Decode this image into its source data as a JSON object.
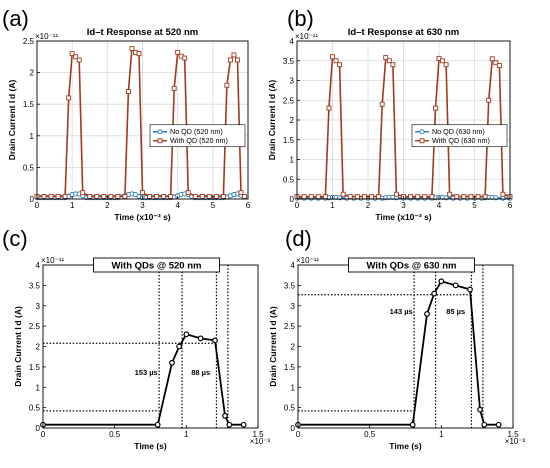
{
  "chart_data": [
    {
      "id": "a",
      "panel_label": "(a)",
      "type": "line",
      "title": "Id–t Response at 520 nm",
      "xlabel": "Time (x10⁻³ s)",
      "ylabel": "Drain Current I d (A)",
      "y_exponent": "×10⁻¹¹",
      "xlim": [
        0,
        6
      ],
      "ylim": [
        0,
        2.5
      ],
      "xticks": [
        0,
        1,
        2,
        3,
        4,
        5,
        6
      ],
      "yticks": [
        0,
        0.5,
        1,
        1.5,
        2,
        2.5
      ],
      "grid": true,
      "legend_position": "center-right",
      "series": [
        {
          "name": "No QD (520 nm)",
          "color": "#1f77b4",
          "marker": "circle",
          "x": [
            0,
            0.1,
            0.2,
            0.3,
            0.4,
            0.5,
            0.6,
            0.7,
            0.8,
            0.9,
            1.0,
            1.1,
            1.2,
            1.3,
            1.4,
            1.5,
            1.6,
            1.7,
            1.8,
            1.9,
            2.0,
            2.1,
            2.2,
            2.3,
            2.4,
            2.5,
            2.6,
            2.7,
            2.8,
            2.9,
            3.0,
            3.1,
            3.2,
            3.3,
            3.4,
            3.5,
            3.6,
            3.7,
            3.8,
            3.9,
            4.0,
            4.1,
            4.2,
            4.3,
            4.4,
            4.5,
            4.6,
            4.7,
            4.8,
            4.9,
            5.0,
            5.1,
            5.2,
            5.3,
            5.4,
            5.5,
            5.6,
            5.7,
            5.8,
            5.9
          ],
          "y": [
            0.02,
            0.02,
            0.02,
            0.02,
            0.02,
            0.02,
            0.02,
            0.02,
            0.02,
            0.04,
            0.07,
            0.08,
            0.08,
            0.05,
            0.02,
            0.02,
            0.02,
            0.02,
            0.02,
            0.02,
            0.02,
            0.02,
            0.02,
            0.02,
            0.03,
            0.05,
            0.07,
            0.08,
            0.07,
            0.04,
            0.02,
            0.02,
            0.02,
            0.02,
            0.02,
            0.02,
            0.02,
            0.02,
            0.02,
            0.03,
            0.05,
            0.07,
            0.08,
            0.07,
            0.04,
            0.02,
            0.02,
            0.02,
            0.02,
            0.02,
            0.02,
            0.02,
            0.02,
            0.02,
            0.03,
            0.05,
            0.07,
            0.08,
            0.06,
            0.03
          ]
        },
        {
          "name": "With QD (520 nm)",
          "color": "#a0391d",
          "marker": "square",
          "x": [
            0,
            0.2,
            0.4,
            0.6,
            0.8,
            0.9,
            1.0,
            1.1,
            1.2,
            1.3,
            1.5,
            1.7,
            1.9,
            2.1,
            2.3,
            2.5,
            2.6,
            2.7,
            2.8,
            2.9,
            3.0,
            3.2,
            3.4,
            3.6,
            3.8,
            3.9,
            4.0,
            4.1,
            4.2,
            4.3,
            4.5,
            4.7,
            4.9,
            5.1,
            5.3,
            5.4,
            5.5,
            5.6,
            5.7,
            5.8,
            5.9
          ],
          "y": [
            0.04,
            0.04,
            0.04,
            0.04,
            0.04,
            1.6,
            2.3,
            2.25,
            2.2,
            0.1,
            0.04,
            0.04,
            0.04,
            0.04,
            0.04,
            0.04,
            1.7,
            2.38,
            2.32,
            2.3,
            0.1,
            0.04,
            0.04,
            0.04,
            0.04,
            1.75,
            2.32,
            2.26,
            2.23,
            0.1,
            0.04,
            0.04,
            0.04,
            0.04,
            0.04,
            1.8,
            2.2,
            2.28,
            2.2,
            0.1,
            0.04
          ]
        }
      ]
    },
    {
      "id": "b",
      "panel_label": "(b)",
      "type": "line",
      "title": "Id–t Response at 630 nm",
      "xlabel": "Time (x10⁻³ s)",
      "ylabel": "Drain Current I d (A)",
      "y_exponent": "×10⁻¹¹",
      "xlim": [
        0,
        6
      ],
      "ylim": [
        0,
        4
      ],
      "xticks": [
        0,
        1,
        2,
        3,
        4,
        5,
        6
      ],
      "yticks": [
        0,
        0.5,
        1,
        1.5,
        2,
        2.5,
        3,
        3.5,
        4
      ],
      "grid": true,
      "legend_position": "center-right",
      "series": [
        {
          "name": "No QD (630 nm)",
          "color": "#1f77b4",
          "marker": "circle",
          "x": [
            0,
            0.2,
            0.4,
            0.6,
            0.8,
            0.9,
            1.0,
            1.1,
            1.2,
            1.4,
            1.6,
            1.8,
            2.0,
            2.2,
            2.4,
            2.5,
            2.6,
            2.7,
            2.8,
            3.0,
            3.2,
            3.4,
            3.6,
            3.8,
            3.9,
            4.0,
            4.1,
            4.2,
            4.4,
            4.6,
            4.8,
            5.0,
            5.2,
            5.3,
            5.4,
            5.5,
            5.6,
            5.8,
            6.0
          ],
          "y": [
            0.02,
            0.02,
            0.02,
            0.02,
            0.02,
            0.03,
            0.04,
            0.04,
            0.03,
            0.02,
            0.02,
            0.02,
            0.02,
            0.02,
            0.02,
            0.03,
            0.04,
            0.04,
            0.03,
            0.02,
            0.02,
            0.02,
            0.02,
            0.02,
            0.03,
            0.04,
            0.04,
            0.03,
            0.02,
            0.02,
            0.02,
            0.02,
            0.02,
            0.03,
            0.04,
            0.04,
            0.03,
            0.02,
            0.02
          ]
        },
        {
          "name": "With QD (630 nm)",
          "color": "#a0391d",
          "marker": "square",
          "x": [
            0,
            0.2,
            0.4,
            0.6,
            0.8,
            0.9,
            1.0,
            1.1,
            1.2,
            1.3,
            1.5,
            1.7,
            1.9,
            2.1,
            2.3,
            2.4,
            2.5,
            2.6,
            2.7,
            2.8,
            3.0,
            3.2,
            3.4,
            3.6,
            3.8,
            3.9,
            4.0,
            4.1,
            4.2,
            4.3,
            4.5,
            4.7,
            4.9,
            5.1,
            5.3,
            5.4,
            5.5,
            5.6,
            5.7,
            5.8,
            6.0
          ],
          "y": [
            0.06,
            0.06,
            0.06,
            0.06,
            0.06,
            2.3,
            3.6,
            3.5,
            3.4,
            0.12,
            0.06,
            0.06,
            0.06,
            0.06,
            0.06,
            2.4,
            3.58,
            3.5,
            3.4,
            0.12,
            0.06,
            0.06,
            0.06,
            0.06,
            0.06,
            2.3,
            3.56,
            3.5,
            3.4,
            0.12,
            0.06,
            0.06,
            0.06,
            0.06,
            0.06,
            2.5,
            3.55,
            3.45,
            3.38,
            0.12,
            0.06
          ]
        }
      ]
    },
    {
      "id": "c",
      "panel_label": "(c)",
      "type": "line",
      "title": "With QDs @ 520 nm",
      "xlabel": "Time (s)",
      "ylabel": "Drain Current I d (A)",
      "y_exponent": "×10⁻¹¹",
      "x_exponent": "×10⁻³",
      "xlim": [
        0,
        1.5
      ],
      "ylim": [
        0,
        4
      ],
      "xticks": [
        0,
        0.5,
        1,
        1.5
      ],
      "yticks": [
        0,
        0.5,
        1,
        1.5,
        2,
        2.5,
        3,
        3.5,
        4
      ],
      "grid": false,
      "series": [
        {
          "name": "",
          "color": "#000000",
          "marker": "circle",
          "x": [
            0,
            0.8,
            0.9,
            0.95,
            1.0,
            1.1,
            1.2,
            1.27,
            1.3,
            1.4
          ],
          "y": [
            0.08,
            0.08,
            1.6,
            2.0,
            2.3,
            2.2,
            2.15,
            0.3,
            0.08,
            0.08
          ]
        }
      ],
      "guides": {
        "vlines": [
          0.81,
          0.97,
          1.21,
          1.29
        ],
        "hlines": [
          {
            "y": 2.08,
            "to_x": 1.21
          },
          {
            "y": 0.42,
            "to_x": 0.81
          }
        ]
      },
      "annotations": [
        {
          "text": "153 µs",
          "x": 0.72,
          "y": 1.3
        },
        {
          "text": "88 µs",
          "x": 1.1,
          "y": 1.3
        }
      ]
    },
    {
      "id": "d",
      "panel_label": "(d)",
      "type": "line",
      "title": "With QDs @ 630 nm",
      "xlabel": "Time (s)",
      "ylabel": "Drain Current I d (A)",
      "y_exponent": "×10⁻¹¹",
      "x_exponent": "×10⁻³",
      "xlim": [
        0,
        1.5
      ],
      "ylim": [
        0,
        4
      ],
      "xticks": [
        0,
        0.5,
        1,
        1.5
      ],
      "yticks": [
        0,
        0.5,
        1,
        1.5,
        2,
        2.5,
        3,
        3.5,
        4
      ],
      "grid": false,
      "series": [
        {
          "name": "",
          "color": "#000000",
          "marker": "circle",
          "x": [
            0,
            0.8,
            0.9,
            0.95,
            1.0,
            1.1,
            1.2,
            1.27,
            1.3,
            1.4
          ],
          "y": [
            0.08,
            0.08,
            2.8,
            3.3,
            3.6,
            3.5,
            3.4,
            0.45,
            0.08,
            0.08
          ]
        }
      ],
      "guides": {
        "vlines": [
          0.81,
          0.96,
          1.21,
          1.29
        ],
        "hlines": [
          {
            "y": 3.27,
            "to_x": 1.21
          },
          {
            "y": 0.42,
            "to_x": 0.81
          }
        ]
      },
      "annotations": [
        {
          "text": "143 µs",
          "x": 0.72,
          "y": 2.8
        },
        {
          "text": "85 µs",
          "x": 1.1,
          "y": 2.8
        }
      ]
    }
  ]
}
